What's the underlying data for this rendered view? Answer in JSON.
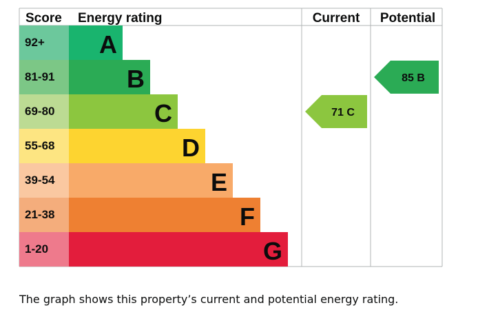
{
  "chart_data": {
    "type": "bar",
    "headers": {
      "score": "Score",
      "rating": "Energy rating",
      "current": "Current",
      "potential": "Potential"
    },
    "bands": [
      {
        "letter": "A",
        "score": "92+",
        "color": "#19b46e",
        "score_bg": "#6cc89c"
      },
      {
        "letter": "B",
        "score": "81-91",
        "color": "#2bab55",
        "score_bg": "#7cc786"
      },
      {
        "letter": "C",
        "score": "69-80",
        "color": "#8cc63f",
        "score_bg": "#bcdb93"
      },
      {
        "letter": "D",
        "score": "55-68",
        "color": "#fdd430",
        "score_bg": "#fde582"
      },
      {
        "letter": "E",
        "score": "39-54",
        "color": "#f8aa69",
        "score_bg": "#fac8a1"
      },
      {
        "letter": "F",
        "score": "21-38",
        "color": "#ee8032",
        "score_bg": "#f4ad7c"
      },
      {
        "letter": "G",
        "score": "1-20",
        "color": "#e31d3c",
        "score_bg": "#ee7a8c"
      }
    ],
    "current": {
      "value": 71,
      "band": "C",
      "label": "71 C"
    },
    "potential": {
      "value": 85,
      "band": "B",
      "label": "85 B"
    }
  },
  "caption": "The graph shows this property’s current and potential energy rating."
}
